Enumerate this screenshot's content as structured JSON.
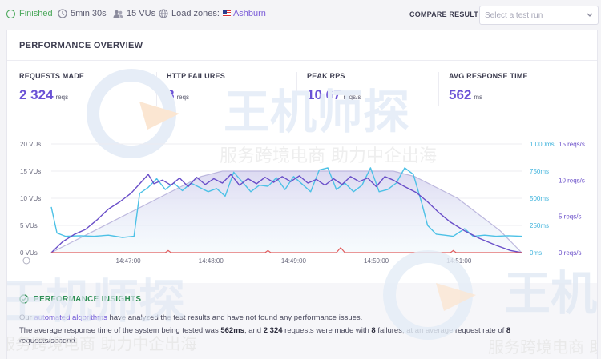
{
  "header": {
    "status": "Finished",
    "duration": "5min 30s",
    "vus": "15 VUs",
    "load_zones_label": "Load zones:",
    "load_zone": "Ashburn",
    "compare_label": "COMPARE RESULT",
    "compare_placeholder": "Select a test run"
  },
  "overview": {
    "title": "PERFORMANCE OVERVIEW",
    "stats": [
      {
        "label": "REQUESTS MADE",
        "value": "2 324",
        "unit": "reqs"
      },
      {
        "label": "HTTP FAILURES",
        "value": "8",
        "unit": "reqs"
      },
      {
        "label": "PEAK RPS",
        "value": "10.67",
        "unit": "reqs/s"
      },
      {
        "label": "AVG RESPONSE TIME",
        "value": "562",
        "unit": "ms"
      }
    ]
  },
  "chart_data": {
    "type": "line",
    "x_ticks": [
      "14:47:00",
      "14:48:00",
      "14:49:00",
      "14:50:00",
      "14:51:00"
    ],
    "y_left_ticks": [
      "20 VUs",
      "15 VUs",
      "10 VUs",
      "5 VUs",
      "0 VUs"
    ],
    "y_right_ms_ticks": [
      "1 000ms",
      "750ms",
      "500ms",
      "250ms",
      "0ms"
    ],
    "y_right_rps_ticks": [
      "15 reqs/s",
      "10 reqs/s",
      "5 reqs/s",
      "0 reqs/s"
    ],
    "ylim_vus": [
      0,
      20
    ],
    "ylim_ms": [
      0,
      1000
    ],
    "ylim_rps": [
      0,
      15
    ],
    "x_range_seconds": [
      0,
      330
    ],
    "series": [
      {
        "key": "vus",
        "axis": "vus",
        "color": "#bdb8de",
        "points": [
          [
            0,
            0
          ],
          [
            15,
            2
          ],
          [
            30,
            4
          ],
          [
            45,
            6
          ],
          [
            60,
            8
          ],
          [
            75,
            10
          ],
          [
            90,
            12
          ],
          [
            105,
            14
          ],
          [
            120,
            15
          ],
          [
            240,
            15
          ],
          [
            255,
            14
          ],
          [
            270,
            12
          ],
          [
            285,
            10
          ],
          [
            300,
            7
          ],
          [
            315,
            4
          ],
          [
            330,
            0
          ]
        ]
      },
      {
        "key": "response_time",
        "axis": "ms",
        "color": "#4cc1e6",
        "points": [
          [
            0,
            420
          ],
          [
            4,
            180
          ],
          [
            10,
            150
          ],
          [
            20,
            155
          ],
          [
            30,
            150
          ],
          [
            40,
            160
          ],
          [
            50,
            140
          ],
          [
            58,
            150
          ],
          [
            62,
            545
          ],
          [
            68,
            600
          ],
          [
            74,
            680
          ],
          [
            80,
            580
          ],
          [
            86,
            640
          ],
          [
            92,
            570
          ],
          [
            98,
            640
          ],
          [
            104,
            600
          ],
          [
            110,
            560
          ],
          [
            116,
            590
          ],
          [
            122,
            520
          ],
          [
            128,
            740
          ],
          [
            134,
            650
          ],
          [
            140,
            560
          ],
          [
            146,
            620
          ],
          [
            152,
            610
          ],
          [
            158,
            690
          ],
          [
            164,
            580
          ],
          [
            170,
            700
          ],
          [
            176,
            630
          ],
          [
            182,
            560
          ],
          [
            188,
            760
          ],
          [
            194,
            780
          ],
          [
            200,
            580
          ],
          [
            206,
            640
          ],
          [
            212,
            560
          ],
          [
            218,
            620
          ],
          [
            224,
            780
          ],
          [
            230,
            560
          ],
          [
            236,
            580
          ],
          [
            242,
            640
          ],
          [
            248,
            780
          ],
          [
            254,
            720
          ],
          [
            260,
            450
          ],
          [
            264,
            250
          ],
          [
            270,
            170
          ],
          [
            276,
            160
          ],
          [
            282,
            150
          ],
          [
            290,
            220
          ],
          [
            296,
            150
          ],
          [
            304,
            160
          ],
          [
            312,
            150
          ],
          [
            320,
            155
          ],
          [
            330,
            150
          ]
        ]
      },
      {
        "key": "request_rate",
        "axis": "rps",
        "color": "#6a4fc9",
        "points": [
          [
            0,
            0
          ],
          [
            8,
            1.5
          ],
          [
            16,
            2.5
          ],
          [
            24,
            3.2
          ],
          [
            32,
            4.5
          ],
          [
            40,
            6
          ],
          [
            48,
            7
          ],
          [
            56,
            8.2
          ],
          [
            62,
            9.5
          ],
          [
            68,
            10.8
          ],
          [
            72,
            9.5
          ],
          [
            78,
            10
          ],
          [
            84,
            9.3
          ],
          [
            90,
            10.3
          ],
          [
            96,
            9.1
          ],
          [
            102,
            10.4
          ],
          [
            108,
            9.4
          ],
          [
            114,
            10.2
          ],
          [
            120,
            9.6
          ],
          [
            126,
            10.8
          ],
          [
            132,
            9.3
          ],
          [
            138,
            10.2
          ],
          [
            144,
            9.5
          ],
          [
            150,
            10.4
          ],
          [
            156,
            9.7
          ],
          [
            162,
            10.5
          ],
          [
            168,
            9.8
          ],
          [
            174,
            10.6
          ],
          [
            180,
            9.6
          ],
          [
            186,
            10.1
          ],
          [
            192,
            9.3
          ],
          [
            198,
            10.2
          ],
          [
            204,
            9.4
          ],
          [
            210,
            10.5
          ],
          [
            216,
            9.8
          ],
          [
            222,
            10.3
          ],
          [
            228,
            9.1
          ],
          [
            234,
            10.5
          ],
          [
            240,
            10.0
          ],
          [
            248,
            9.1
          ],
          [
            256,
            8.3
          ],
          [
            264,
            7.0
          ],
          [
            272,
            5.5
          ],
          [
            280,
            4.2
          ],
          [
            290,
            3.0
          ],
          [
            300,
            2.0
          ],
          [
            312,
            1.0
          ],
          [
            322,
            0.3
          ],
          [
            330,
            0
          ]
        ]
      },
      {
        "key": "http_failures",
        "axis": "rps",
        "color": "#e25b5b",
        "points": [
          [
            0,
            0
          ],
          [
            80,
            0
          ],
          [
            82,
            0.3
          ],
          [
            84,
            0
          ],
          [
            150,
            0
          ],
          [
            152,
            0.3
          ],
          [
            154,
            0
          ],
          [
            200,
            0
          ],
          [
            203,
            0.7
          ],
          [
            206,
            0
          ],
          [
            280,
            0
          ],
          [
            282,
            0.3
          ],
          [
            284,
            0
          ],
          [
            330,
            0
          ]
        ]
      }
    ]
  },
  "insights": {
    "title": "PERFORMANCE INSIGHTS",
    "line1_pre": "Our",
    "line1_link": "automated algorithms",
    "line1_post": "have analyzed the test results and have not found any performance issues.",
    "line2_a": "The average response time of the system being tested was",
    "line2_ms": "562ms",
    "line2_b": ", and",
    "line2_reqs": "2 324",
    "line2_c": "requests were made with",
    "line2_fail": "8",
    "line2_d": "failures, at an average request rate of",
    "line2_rate": "8",
    "line3": "requests/second."
  },
  "watermark": {
    "brand": "王机师探",
    "slogan": "服务跨境电商 助力中企出海"
  },
  "colors": {
    "accent": "#6b52d6",
    "success": "#4aa85a",
    "vus_fill": "#d9d6f0",
    "response_line": "#4cc1e6",
    "request_line": "#6a4fc9",
    "failure_line": "#e25b5b"
  }
}
